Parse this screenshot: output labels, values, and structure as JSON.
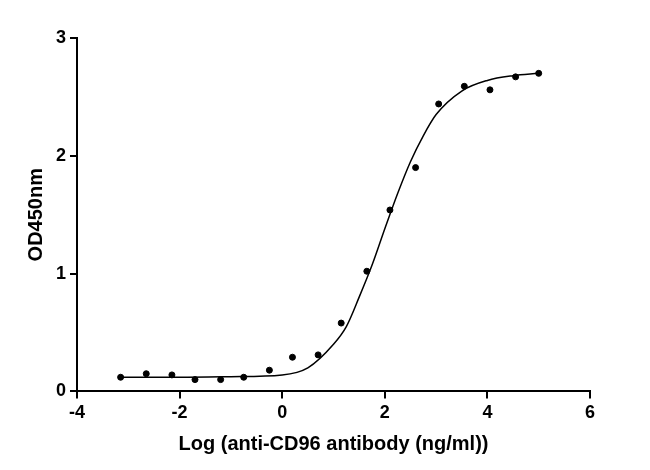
{
  "chart_data": {
    "type": "scatter",
    "x_label": "Log (anti-CD96 antibody (ng/ml))",
    "y_label": "OD450nm",
    "xlim": [
      -4,
      6
    ],
    "xticks": [
      -4,
      -2,
      0,
      2,
      4,
      6
    ],
    "ylim": [
      0,
      3
    ],
    "yticks": [
      0,
      1,
      2,
      3
    ],
    "grid": false,
    "series": [
      {
        "type": "scatter",
        "color": "#000000",
        "marker": "circle",
        "x": [
          -3.15,
          -2.65,
          -2.15,
          -1.7,
          -1.2,
          -0.75,
          -0.25,
          0.2,
          0.7,
          1.15,
          1.65,
          2.1,
          2.6,
          3.05,
          3.55,
          4.05,
          4.55,
          5.0
        ],
        "values": [
          0.12,
          0.15,
          0.14,
          0.1,
          0.1,
          0.12,
          0.18,
          0.29,
          0.31,
          0.58,
          1.02,
          1.54,
          1.9,
          2.44,
          2.59,
          2.56,
          2.67,
          2.7
        ]
      },
      {
        "type": "line",
        "color": "#000000",
        "line_style": "solid",
        "x": [
          -3.15,
          -2,
          -1,
          0,
          0.5,
          1,
          1.25,
          1.5,
          1.75,
          2,
          2.25,
          2.5,
          2.75,
          3,
          3.5,
          4,
          4.5,
          5
        ],
        "values": [
          0.12,
          0.12,
          0.125,
          0.14,
          0.2,
          0.4,
          0.55,
          0.8,
          1.07,
          1.38,
          1.68,
          1.95,
          2.17,
          2.35,
          2.55,
          2.64,
          2.68,
          2.7
        ]
      }
    ]
  }
}
